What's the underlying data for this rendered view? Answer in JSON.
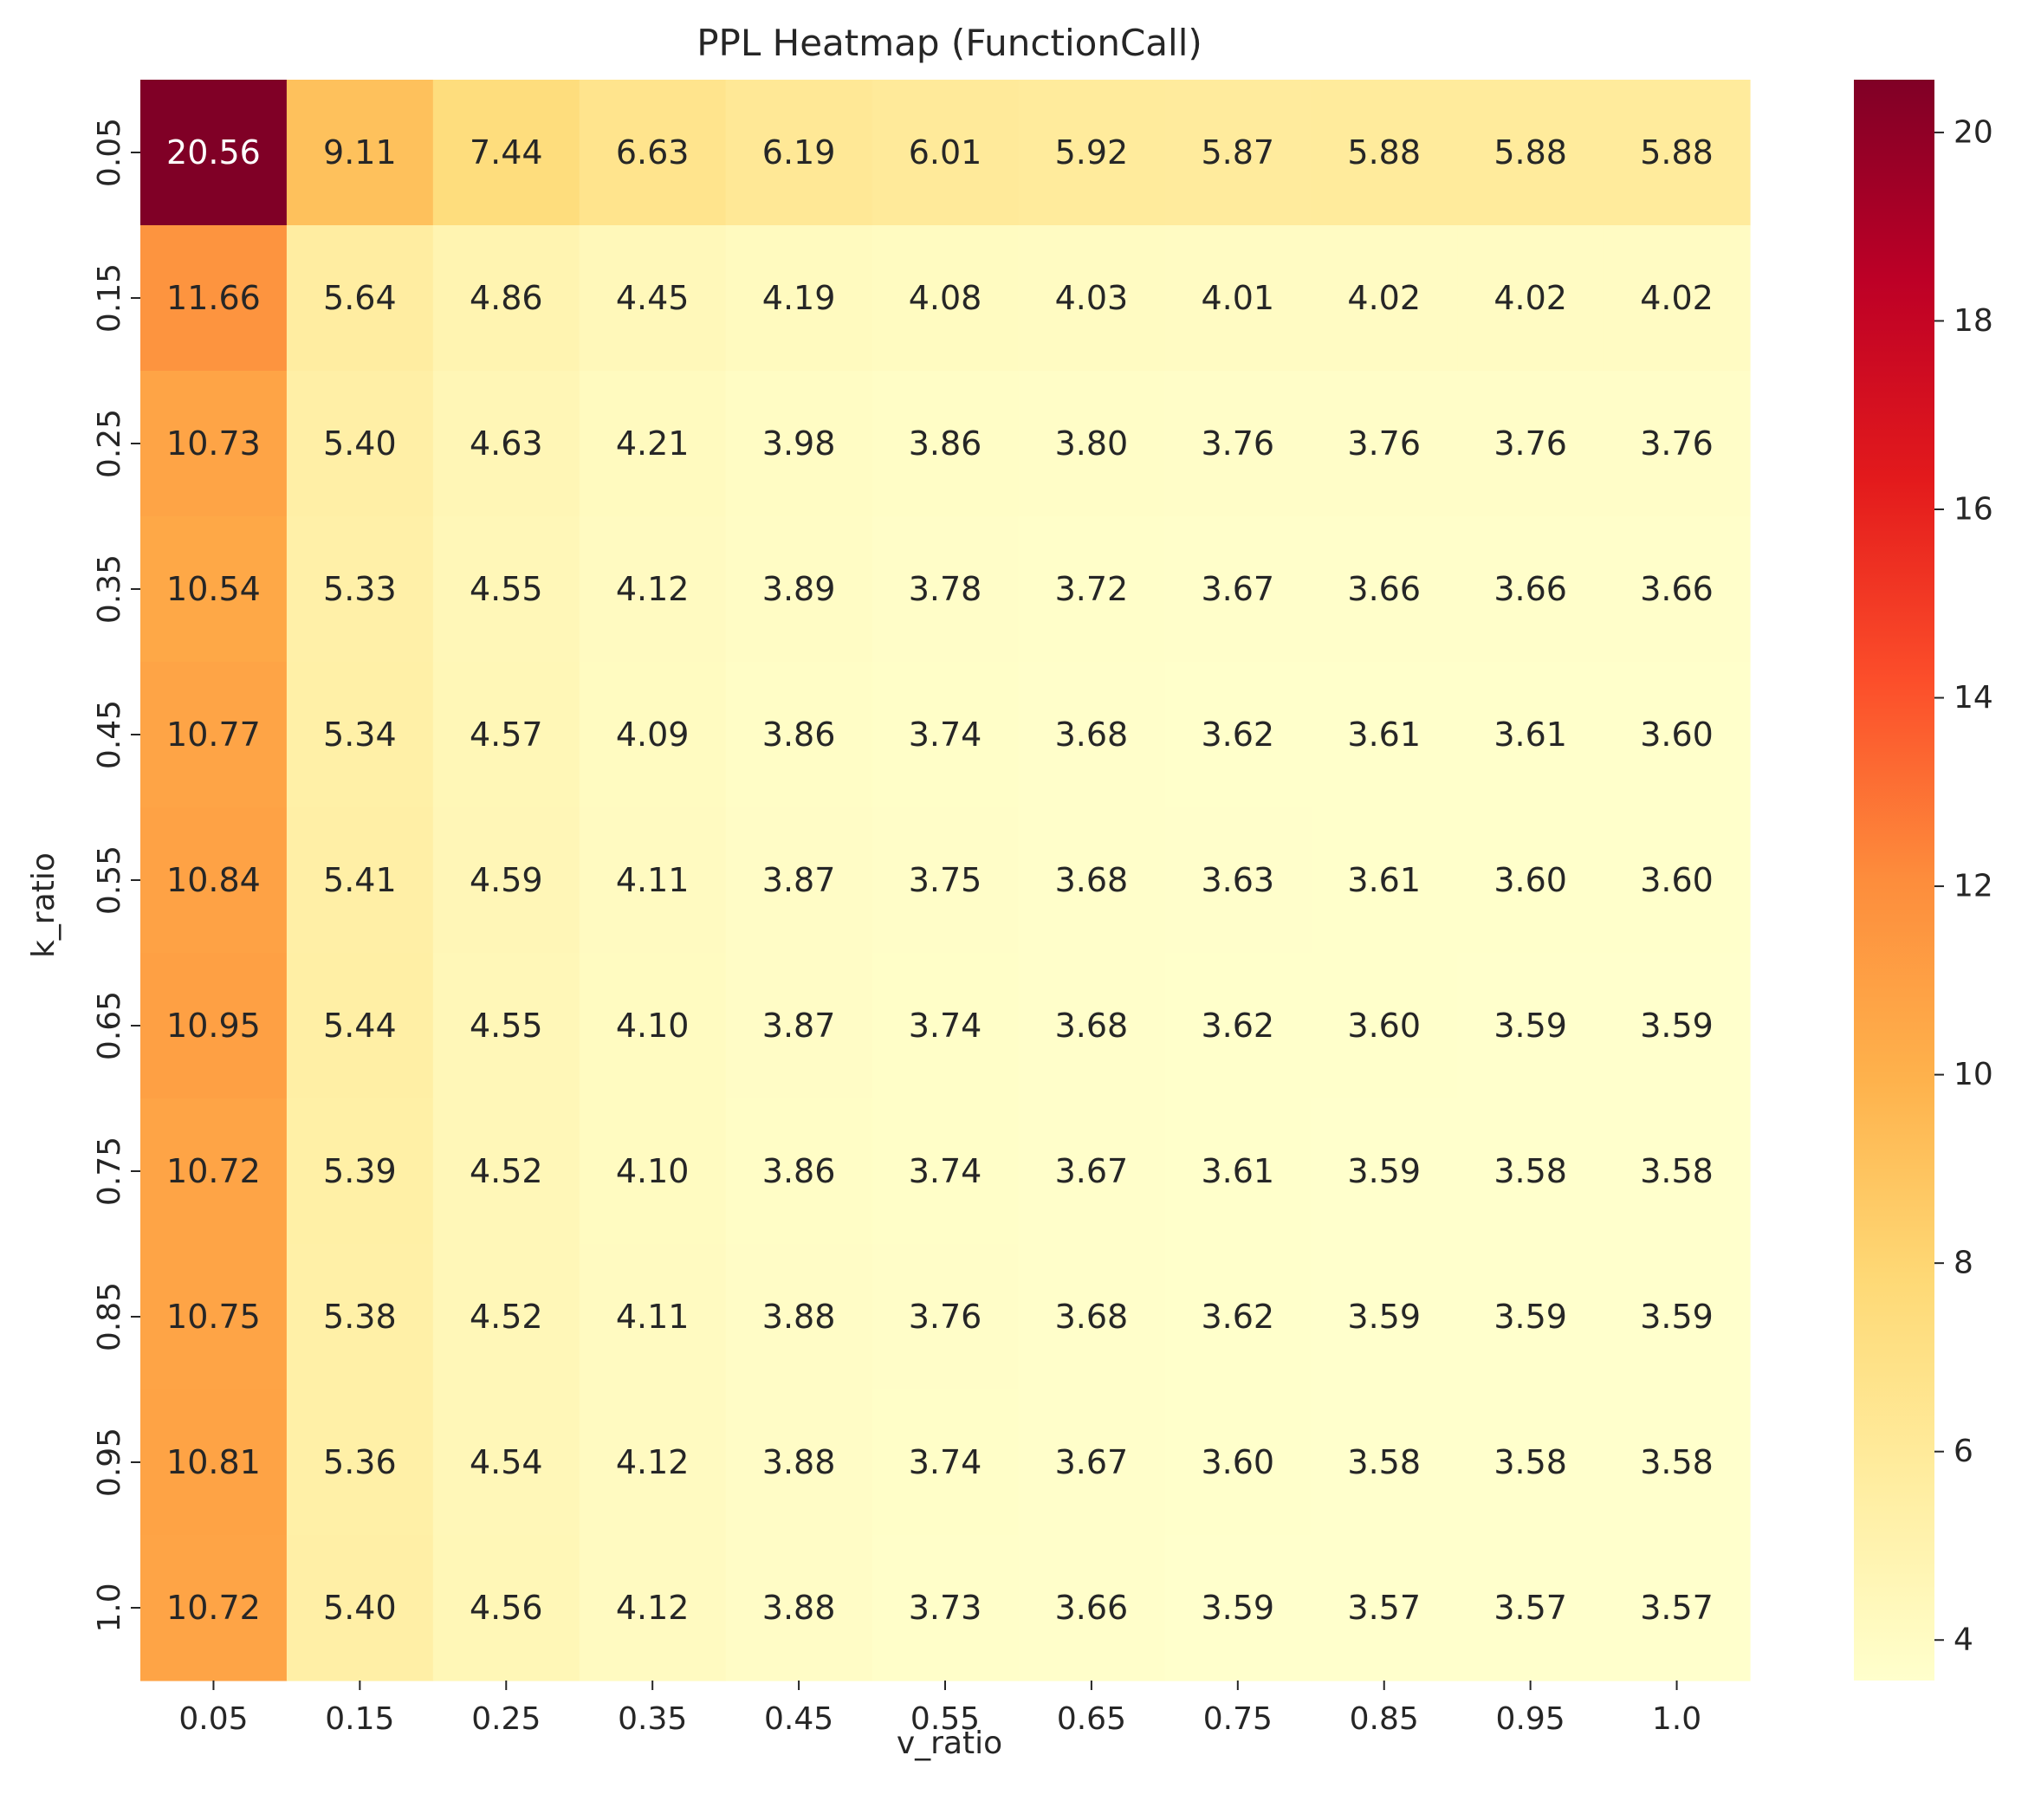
{
  "chart_data": {
    "type": "heatmap",
    "title": "PPL Heatmap (FunctionCall)",
    "xlabel": "v_ratio",
    "ylabel": "k_ratio",
    "x": [
      "0.05",
      "0.15",
      "0.25",
      "0.35",
      "0.45",
      "0.55",
      "0.65",
      "0.75",
      "0.85",
      "0.95",
      "1.0"
    ],
    "y": [
      "0.05",
      "0.15",
      "0.25",
      "0.35",
      "0.45",
      "0.55",
      "0.65",
      "0.75",
      "0.85",
      "0.95",
      "1.0"
    ],
    "values": [
      [
        20.56,
        9.11,
        7.44,
        6.63,
        6.19,
        6.01,
        5.92,
        5.87,
        5.88,
        5.88,
        5.88
      ],
      [
        11.66,
        5.64,
        4.86,
        4.45,
        4.19,
        4.08,
        4.03,
        4.01,
        4.02,
        4.02,
        4.02
      ],
      [
        10.73,
        5.4,
        4.63,
        4.21,
        3.98,
        3.86,
        3.8,
        3.76,
        3.76,
        3.76,
        3.76
      ],
      [
        10.54,
        5.33,
        4.55,
        4.12,
        3.89,
        3.78,
        3.72,
        3.67,
        3.66,
        3.66,
        3.66
      ],
      [
        10.77,
        5.34,
        4.57,
        4.09,
        3.86,
        3.74,
        3.68,
        3.62,
        3.61,
        3.61,
        3.6
      ],
      [
        10.84,
        5.41,
        4.59,
        4.11,
        3.87,
        3.75,
        3.68,
        3.63,
        3.61,
        3.6,
        3.6
      ],
      [
        10.95,
        5.44,
        4.55,
        4.1,
        3.87,
        3.74,
        3.68,
        3.62,
        3.6,
        3.59,
        3.59
      ],
      [
        10.72,
        5.39,
        4.52,
        4.1,
        3.86,
        3.74,
        3.67,
        3.61,
        3.59,
        3.58,
        3.58
      ],
      [
        10.75,
        5.38,
        4.52,
        4.11,
        3.88,
        3.76,
        3.68,
        3.62,
        3.59,
        3.59,
        3.59
      ],
      [
        10.81,
        5.36,
        4.54,
        4.12,
        3.88,
        3.74,
        3.67,
        3.6,
        3.58,
        3.58,
        3.58
      ],
      [
        10.72,
        5.4,
        4.56,
        4.12,
        3.88,
        3.73,
        3.66,
        3.59,
        3.57,
        3.57,
        3.57
      ]
    ],
    "colorbar": {
      "colormap": "YlOrRd",
      "range": [
        3.57,
        20.56
      ],
      "ticks": [
        4,
        6,
        8,
        10,
        12,
        14,
        16,
        18,
        20
      ]
    },
    "annotation_colors": {
      "dark": "#262626",
      "light": "#ffffff"
    }
  }
}
